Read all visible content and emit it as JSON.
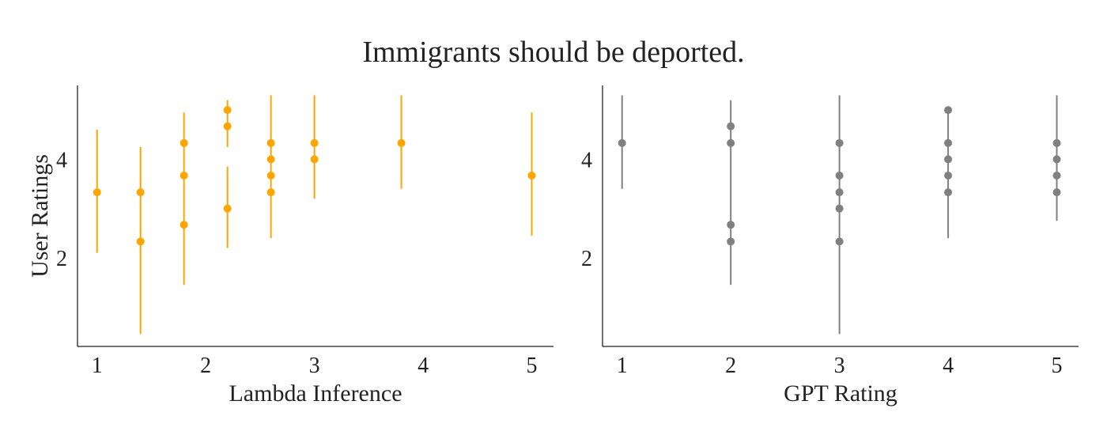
{
  "figure": {
    "title": "Immigrants should be deported."
  },
  "chart_data": [
    {
      "type": "scatter",
      "errorbars": true,
      "xlabel": "Lambda Inference",
      "ylabel": "User Ratings",
      "xlim": [
        0.82,
        5.2
      ],
      "ylim": [
        0.2,
        5.5
      ],
      "xticks": [
        1,
        2,
        3,
        4,
        5
      ],
      "yticks": [
        2,
        4
      ],
      "color": "#FFA500",
      "grid": false,
      "points": [
        {
          "x": 1.0,
          "y": 3.33,
          "err_low": 2.1,
          "err_high": 4.6
        },
        {
          "x": 1.4,
          "y": 3.33,
          "err_low": 0.45,
          "err_high": 4.25
        },
        {
          "x": 1.4,
          "y": 2.33,
          "err_low": 0.45,
          "err_high": 4.25
        },
        {
          "x": 1.8,
          "y": 4.33,
          "err_low": 1.45,
          "err_high": 4.95
        },
        {
          "x": 1.8,
          "y": 3.67,
          "err_low": 1.45,
          "err_high": 4.95
        },
        {
          "x": 1.8,
          "y": 2.67,
          "err_low": 1.45,
          "err_high": 4.95
        },
        {
          "x": 2.2,
          "y": 5.0,
          "err_low": 4.25,
          "err_high": 5.2
        },
        {
          "x": 2.2,
          "y": 4.67,
          "err_low": 4.25,
          "err_high": 5.2
        },
        {
          "x": 2.2,
          "y": 3.0,
          "err_low": 2.2,
          "err_high": 3.85
        },
        {
          "x": 2.6,
          "y": 4.33,
          "err_low": 2.4,
          "err_high": 5.3
        },
        {
          "x": 2.6,
          "y": 4.0,
          "err_low": 2.4,
          "err_high": 5.3
        },
        {
          "x": 2.6,
          "y": 3.67,
          "err_low": 2.4,
          "err_high": 5.3
        },
        {
          "x": 2.6,
          "y": 3.33,
          "err_low": 2.4,
          "err_high": 5.3
        },
        {
          "x": 3.0,
          "y": 4.33,
          "err_low": 3.2,
          "err_high": 5.3
        },
        {
          "x": 3.0,
          "y": 4.0,
          "err_low": 3.2,
          "err_high": 5.3
        },
        {
          "x": 3.8,
          "y": 4.33,
          "err_low": 3.4,
          "err_high": 5.3
        },
        {
          "x": 5.0,
          "y": 3.67,
          "err_low": 2.45,
          "err_high": 4.95
        }
      ]
    },
    {
      "type": "scatter",
      "errorbars": true,
      "xlabel": "GPT Rating",
      "ylabel": "",
      "xlim": [
        0.82,
        5.2
      ],
      "ylim": [
        0.2,
        5.5
      ],
      "xticks": [
        1,
        2,
        3,
        4,
        5
      ],
      "yticks": [
        2,
        4
      ],
      "color": "#808080",
      "grid": false,
      "points": [
        {
          "x": 1,
          "y": 4.33,
          "err_low": 3.4,
          "err_high": 5.3
        },
        {
          "x": 2,
          "y": 4.67,
          "err_low": 1.45,
          "err_high": 5.2
        },
        {
          "x": 2,
          "y": 4.33,
          "err_low": 1.45,
          "err_high": 5.2
        },
        {
          "x": 2,
          "y": 2.67,
          "err_low": 1.45,
          "err_high": 5.2
        },
        {
          "x": 2,
          "y": 2.33,
          "err_low": 1.45,
          "err_high": 5.2
        },
        {
          "x": 3,
          "y": 4.33,
          "err_low": 0.45,
          "err_high": 5.3
        },
        {
          "x": 3,
          "y": 3.67,
          "err_low": 0.45,
          "err_high": 5.3
        },
        {
          "x": 3,
          "y": 3.33,
          "err_low": 0.45,
          "err_high": 5.3
        },
        {
          "x": 3,
          "y": 3.0,
          "err_low": 0.45,
          "err_high": 5.3
        },
        {
          "x": 3,
          "y": 2.33,
          "err_low": 0.45,
          "err_high": 5.3
        },
        {
          "x": 4,
          "y": 5.0,
          "err_low": 2.4,
          "err_high": 5.0
        },
        {
          "x": 4,
          "y": 4.33,
          "err_low": 2.4,
          "err_high": 5.0
        },
        {
          "x": 4,
          "y": 4.0,
          "err_low": 2.4,
          "err_high": 5.0
        },
        {
          "x": 4,
          "y": 3.67,
          "err_low": 2.4,
          "err_high": 5.0
        },
        {
          "x": 4,
          "y": 3.33,
          "err_low": 2.4,
          "err_high": 5.0
        },
        {
          "x": 5,
          "y": 4.33,
          "err_low": 2.75,
          "err_high": 5.3
        },
        {
          "x": 5,
          "y": 4.0,
          "err_low": 2.75,
          "err_high": 5.3
        },
        {
          "x": 5,
          "y": 3.67,
          "err_low": 2.75,
          "err_high": 5.3
        },
        {
          "x": 5,
          "y": 3.33,
          "err_low": 2.75,
          "err_high": 5.3
        }
      ]
    }
  ]
}
